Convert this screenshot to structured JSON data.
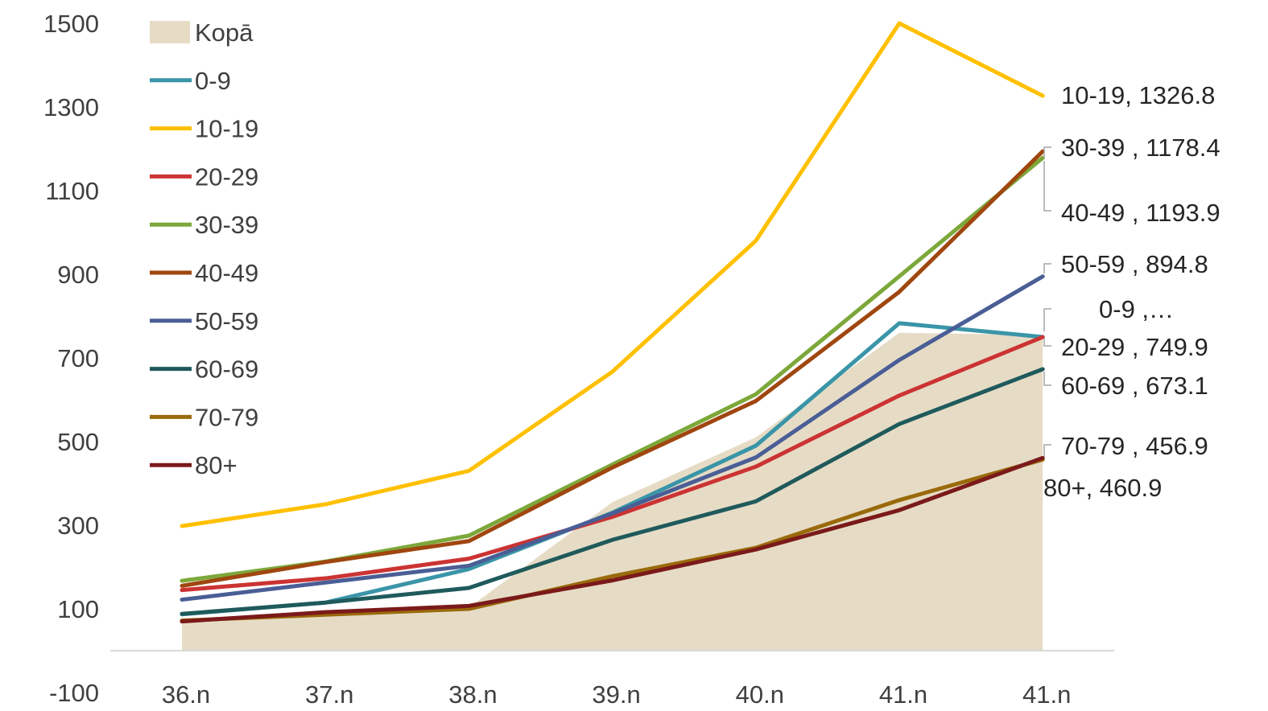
{
  "chart_data": {
    "type": "line",
    "categories": [
      "36.n",
      "37.n",
      "38.n",
      "39.n",
      "40.n",
      "41.n",
      "41.n"
    ],
    "ylim": [
      -100,
      1500
    ],
    "yticks": [
      "1500",
      "1300",
      "1100",
      "900",
      "700",
      "500",
      "300",
      "100",
      "-100"
    ],
    "grid": false,
    "legend_position": "top-left",
    "area": {
      "name": "Kopā",
      "color": "#E6DCC6",
      "values": [
        75,
        88,
        103,
        355,
        510,
        760,
        755
      ]
    },
    "series": [
      {
        "name": "0-9",
        "color": "#3A95A8",
        "values": [
          87,
          115,
          195,
          330,
          490,
          783,
          750
        ]
      },
      {
        "name": "10-19",
        "color": "#FFC000",
        "values": [
          298,
          350,
          430,
          667,
          980,
          1500,
          1326.8
        ]
      },
      {
        "name": "20-29",
        "color": "#CC3333",
        "values": [
          145,
          173,
          220,
          320,
          440,
          610,
          749.9
        ]
      },
      {
        "name": "30-39",
        "color": "#7CA83A",
        "values": [
          167,
          213,
          275,
          445,
          613,
          895,
          1178.4
        ]
      },
      {
        "name": "40-49",
        "color": "#A0460F",
        "values": [
          155,
          212,
          262,
          438,
          597,
          858,
          1193.9
        ]
      },
      {
        "name": "50-59",
        "color": "#4A5E96",
        "values": [
          122,
          163,
          203,
          328,
          462,
          695,
          894.8
        ]
      },
      {
        "name": "60-69",
        "color": "#1F5A5C",
        "values": [
          88,
          115,
          150,
          265,
          357,
          542,
          673.1
        ]
      },
      {
        "name": "70-79",
        "color": "#9A6A0B",
        "values": [
          72,
          86,
          100,
          178,
          246,
          360,
          456.9
        ]
      },
      {
        "name": "80+",
        "color": "#7B1A1A",
        "values": [
          70,
          92,
          107,
          168,
          242,
          336,
          460.9
        ]
      }
    ],
    "data_labels": [
      {
        "series": "10-19",
        "text": "10-19, 1326.8"
      },
      {
        "series": "30-39",
        "text": "30-39 , 1178.4"
      },
      {
        "series": "40-49",
        "text": "40-49 , 1193.9"
      },
      {
        "series": "50-59",
        "text": "50-59 , 894.8"
      },
      {
        "series": "0-9",
        "text": "0-9 ,…"
      },
      {
        "series": "20-29",
        "text": "20-29 , 749.9"
      },
      {
        "series": "60-69",
        "text": "60-69 , 673.1"
      },
      {
        "series": "70-79",
        "text": "70-79 , 456.9"
      },
      {
        "series": "80+",
        "text": "80+, 460.9"
      }
    ]
  }
}
